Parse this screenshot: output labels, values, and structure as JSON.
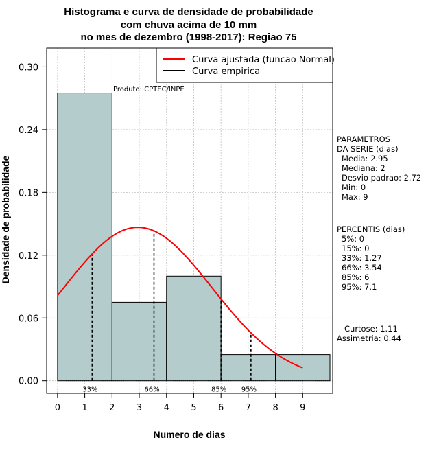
{
  "chart_data": {
    "type": "bar",
    "title_lines": [
      "Histograma e curva de densidade de probabilidade",
      "com chuva acima de 10 mm",
      "no mes de dezembro (1998-2017): Regiao 75"
    ],
    "xlabel": "Numero de dias",
    "ylabel": "Densidade de probabilidade",
    "xlim": [
      -0.4,
      10.1
    ],
    "ylim": [
      -0.012,
      0.318
    ],
    "x_ticks": [
      0,
      1,
      2,
      3,
      4,
      5,
      6,
      7,
      8,
      9
    ],
    "y_ticks": [
      0.0,
      0.06,
      0.12,
      0.18,
      0.24,
      0.3
    ],
    "y_tick_labels": [
      "0.00",
      "0.06",
      "0.12",
      "0.18",
      "0.24",
      "0.30"
    ],
    "grid": true,
    "histogram": [
      {
        "x0": 0,
        "x1": 2,
        "density": 0.275
      },
      {
        "x0": 2,
        "x1": 4,
        "density": 0.075
      },
      {
        "x0": 4,
        "x1": 6,
        "density": 0.1
      },
      {
        "x0": 6,
        "x1": 8,
        "density": 0.025
      },
      {
        "x0": 8,
        "x1": 10,
        "density": 0.025
      }
    ],
    "normal_fit": {
      "name": "Curva ajustada (funcao Normal)",
      "mean": 2.95,
      "sd": 2.72,
      "x_from": 0,
      "x_to": 9,
      "color": "#ff0000"
    },
    "empirical_curve": {
      "name": "Curva empirica",
      "color": "#000000"
    },
    "percentile_lines": [
      {
        "x": 1.27,
        "label": "33%"
      },
      {
        "x": 3.54,
        "label": "66%"
      },
      {
        "x": 6,
        "label": "85%"
      },
      {
        "x": 7.1,
        "label": "95%"
      }
    ],
    "legend_position": "top-right",
    "bar_color": "#b5cccc",
    "annotation": "Produto: CPTEC/INPE"
  },
  "side_panel": {
    "params_title_1": "PARAMETROS",
    "params_title_2": "DA SERIE (dias)",
    "params": [
      "Media: 2.95",
      "Mediana: 2",
      "Desvio padrao: 2.72",
      "Min: 0",
      "Max: 9"
    ],
    "pct_title": "PERCENTIS (dias)",
    "percentiles": [
      "5%: 0",
      "15%: 0",
      "33%: 1.27",
      "66%: 3.54",
      "85%: 6",
      "95%: 7.1"
    ],
    "curtose": "Curtose: 1.11",
    "assimetria": "Assimetria: 0.44"
  }
}
